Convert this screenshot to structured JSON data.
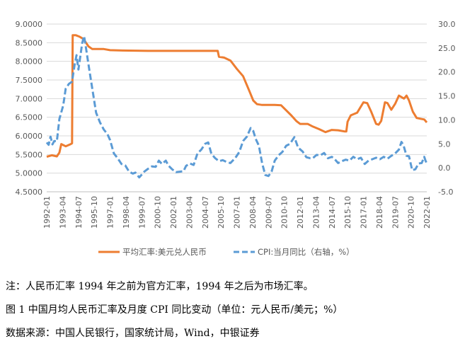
{
  "chart_data": {
    "type": "line",
    "y_left_ticks": [
      "4.5000",
      "5.0000",
      "5.5000",
      "6.0000",
      "6.5000",
      "7.0000",
      "7.5000",
      "8.0000",
      "8.5000",
      "9.0000"
    ],
    "y_right_ticks": [
      "-5.0",
      "0.0",
      "5.0",
      "10.0",
      "15.0",
      "20.0",
      "25.0",
      "30.0"
    ],
    "x_ticks": [
      "1992-01",
      "1993-04",
      "1994-07",
      "1995-10",
      "1997-01",
      "1998-04",
      "1999-07",
      "2000-10",
      "2002-01",
      "2003-04",
      "2004-07",
      "2005-10",
      "2007-01",
      "2008-04",
      "2009-07",
      "2010-10",
      "2012-01",
      "2013-04",
      "2014-07",
      "2015-10",
      "2017-01",
      "2018-04",
      "2019-07",
      "2020-10",
      "2022-01"
    ],
    "ylim_left": [
      4.5,
      9.0
    ],
    "ylim_right": [
      -5,
      30
    ],
    "x_range": [
      1992.0,
      2022.0
    ],
    "series": [
      {
        "name": "平均汇率:美元兑人民币",
        "axis": "left",
        "color": "#ED7D31",
        "points": [
          [
            1992.0,
            5.44
          ],
          [
            1992.4,
            5.48
          ],
          [
            1992.8,
            5.45
          ],
          [
            1993.0,
            5.55
          ],
          [
            1993.15,
            5.78
          ],
          [
            1993.5,
            5.72
          ],
          [
            1993.9,
            5.78
          ],
          [
            1994.0,
            5.8
          ],
          [
            1994.05,
            8.7
          ],
          [
            1994.3,
            8.7
          ],
          [
            1994.6,
            8.66
          ],
          [
            1994.9,
            8.6
          ],
          [
            1995.3,
            8.4
          ],
          [
            1995.6,
            8.33
          ],
          [
            1996.0,
            8.33
          ],
          [
            1996.5,
            8.33
          ],
          [
            1997.0,
            8.3
          ],
          [
            1998.0,
            8.29
          ],
          [
            2000.0,
            8.28
          ],
          [
            2002.0,
            8.28
          ],
          [
            2004.0,
            8.28
          ],
          [
            2005.5,
            8.28
          ],
          [
            2005.6,
            8.12
          ],
          [
            2006.0,
            8.1
          ],
          [
            2006.5,
            8.02
          ],
          [
            2007.0,
            7.8
          ],
          [
            2007.5,
            7.6
          ],
          [
            2008.0,
            7.2
          ],
          [
            2008.3,
            6.95
          ],
          [
            2008.6,
            6.85
          ],
          [
            2009.0,
            6.83
          ],
          [
            2010.0,
            6.83
          ],
          [
            2010.5,
            6.82
          ],
          [
            2010.8,
            6.72
          ],
          [
            2011.3,
            6.55
          ],
          [
            2011.7,
            6.4
          ],
          [
            2012.0,
            6.32
          ],
          [
            2012.6,
            6.32
          ],
          [
            2013.0,
            6.25
          ],
          [
            2013.5,
            6.18
          ],
          [
            2014.0,
            6.1
          ],
          [
            2014.5,
            6.16
          ],
          [
            2015.0,
            6.15
          ],
          [
            2015.5,
            6.12
          ],
          [
            2015.65,
            6.12
          ],
          [
            2015.75,
            6.38
          ],
          [
            2016.0,
            6.55
          ],
          [
            2016.5,
            6.62
          ],
          [
            2017.0,
            6.9
          ],
          [
            2017.3,
            6.88
          ],
          [
            2017.6,
            6.66
          ],
          [
            2018.0,
            6.32
          ],
          [
            2018.2,
            6.3
          ],
          [
            2018.4,
            6.4
          ],
          [
            2018.7,
            6.9
          ],
          [
            2018.9,
            6.88
          ],
          [
            2019.2,
            6.7
          ],
          [
            2019.5,
            6.86
          ],
          [
            2019.8,
            7.08
          ],
          [
            2020.2,
            7.0
          ],
          [
            2020.4,
            7.08
          ],
          [
            2020.6,
            6.95
          ],
          [
            2020.9,
            6.65
          ],
          [
            2021.2,
            6.48
          ],
          [
            2021.5,
            6.46
          ],
          [
            2021.8,
            6.44
          ],
          [
            2022.0,
            6.36
          ]
        ]
      },
      {
        "name": "CPI:当月同比（右轴，%）",
        "axis": "right",
        "color": "#5B9BD5",
        "points": [
          [
            1992.0,
            5.3
          ],
          [
            1992.15,
            4.8
          ],
          [
            1992.3,
            6.5
          ],
          [
            1992.45,
            4.9
          ],
          [
            1992.6,
            5.6
          ],
          [
            1992.8,
            5.5
          ],
          [
            1993.0,
            10.2
          ],
          [
            1993.3,
            13.0
          ],
          [
            1993.5,
            16.5
          ],
          [
            1993.75,
            17.5
          ],
          [
            1994.0,
            18.0
          ],
          [
            1994.2,
            21.5
          ],
          [
            1994.35,
            23.5
          ],
          [
            1994.5,
            20.5
          ],
          [
            1994.8,
            26.0
          ],
          [
            1994.95,
            27.5
          ],
          [
            1995.1,
            25.0
          ],
          [
            1995.3,
            21.5
          ],
          [
            1995.6,
            16.5
          ],
          [
            1995.9,
            11.5
          ],
          [
            1996.2,
            9.5
          ],
          [
            1996.5,
            8.0
          ],
          [
            1996.8,
            7.0
          ],
          [
            1997.0,
            5.8
          ],
          [
            1997.3,
            3.0
          ],
          [
            1997.6,
            2.0
          ],
          [
            1997.9,
            0.8
          ],
          [
            1998.2,
            0.5
          ],
          [
            1998.5,
            -0.8
          ],
          [
            1998.8,
            -1.2
          ],
          [
            1999.0,
            -1.0
          ],
          [
            1999.3,
            -2.0
          ],
          [
            1999.5,
            -1.4
          ],
          [
            1999.7,
            -0.8
          ],
          [
            2000.0,
            -0.2
          ],
          [
            2000.3,
            0.3
          ],
          [
            2000.6,
            0.2
          ],
          [
            2000.85,
            1.5
          ],
          [
            2001.1,
            0.8
          ],
          [
            2001.4,
            1.5
          ],
          [
            2001.6,
            0.5
          ],
          [
            2001.9,
            -0.3
          ],
          [
            2002.2,
            -0.9
          ],
          [
            2002.5,
            -0.8
          ],
          [
            2002.8,
            -0.7
          ],
          [
            2003.0,
            0.4
          ],
          [
            2003.3,
            0.9
          ],
          [
            2003.6,
            0.6
          ],
          [
            2003.9,
            3.0
          ],
          [
            2004.2,
            3.8
          ],
          [
            2004.5,
            5.0
          ],
          [
            2004.75,
            5.3
          ],
          [
            2005.0,
            2.9
          ],
          [
            2005.3,
            2.0
          ],
          [
            2005.6,
            1.4
          ],
          [
            2005.9,
            1.6
          ],
          [
            2006.2,
            1.2
          ],
          [
            2006.5,
            1.0
          ],
          [
            2006.9,
            2.1
          ],
          [
            2007.2,
            3.3
          ],
          [
            2007.5,
            5.6
          ],
          [
            2007.8,
            6.5
          ],
          [
            2008.1,
            8.3
          ],
          [
            2008.3,
            7.7
          ],
          [
            2008.5,
            6.0
          ],
          [
            2008.75,
            4.6
          ],
          [
            2009.0,
            1.0
          ],
          [
            2009.25,
            -1.5
          ],
          [
            2009.5,
            -1.7
          ],
          [
            2009.75,
            -0.8
          ],
          [
            2010.0,
            1.5
          ],
          [
            2010.3,
            2.6
          ],
          [
            2010.6,
            3.3
          ],
          [
            2010.9,
            4.6
          ],
          [
            2011.2,
            5.0
          ],
          [
            2011.55,
            6.4
          ],
          [
            2011.85,
            4.2
          ],
          [
            2012.2,
            3.4
          ],
          [
            2012.5,
            2.2
          ],
          [
            2012.8,
            2.0
          ],
          [
            2013.0,
            2.0
          ],
          [
            2013.3,
            2.7
          ],
          [
            2013.6,
            2.6
          ],
          [
            2013.9,
            3.1
          ],
          [
            2014.2,
            2.0
          ],
          [
            2014.5,
            2.3
          ],
          [
            2014.8,
            1.6
          ],
          [
            2015.0,
            1.0
          ],
          [
            2015.3,
            1.4
          ],
          [
            2015.6,
            1.7
          ],
          [
            2015.9,
            1.5
          ],
          [
            2016.2,
            2.3
          ],
          [
            2016.5,
            1.8
          ],
          [
            2016.8,
            2.1
          ],
          [
            2017.1,
            0.8
          ],
          [
            2017.4,
            1.5
          ],
          [
            2017.7,
            1.8
          ],
          [
            2018.0,
            2.1
          ],
          [
            2018.3,
            1.8
          ],
          [
            2018.6,
            2.3
          ],
          [
            2018.9,
            1.9
          ],
          [
            2019.2,
            2.5
          ],
          [
            2019.5,
            3.0
          ],
          [
            2019.8,
            3.8
          ],
          [
            2020.0,
            5.4
          ],
          [
            2020.15,
            4.8
          ],
          [
            2020.4,
            2.5
          ],
          [
            2020.6,
            2.4
          ],
          [
            2020.85,
            -0.5
          ],
          [
            2021.1,
            -0.3
          ],
          [
            2021.35,
            0.9
          ],
          [
            2021.6,
            1.0
          ],
          [
            2021.8,
            2.3
          ],
          [
            2021.9,
            1.5
          ],
          [
            2022.0,
            0.9
          ]
        ]
      }
    ],
    "legend": [
      {
        "label": "平均汇率:美元兑人民币",
        "style": "solid"
      },
      {
        "label": "CPI:当月同比（右轴，%）",
        "style": "dashed"
      }
    ],
    "legend_position": "bottom"
  },
  "captions": {
    "note": "注：人民币汇率 1994 年之前为官方汇率，1994 年之后为市场汇率。",
    "figure": "图 1 中国月均人民币汇率及月度 CPI 同比变动（单位：元人民币/美元；%）",
    "source": "数据来源：中国人民银行，国家统计局，Wind，中银证券"
  }
}
